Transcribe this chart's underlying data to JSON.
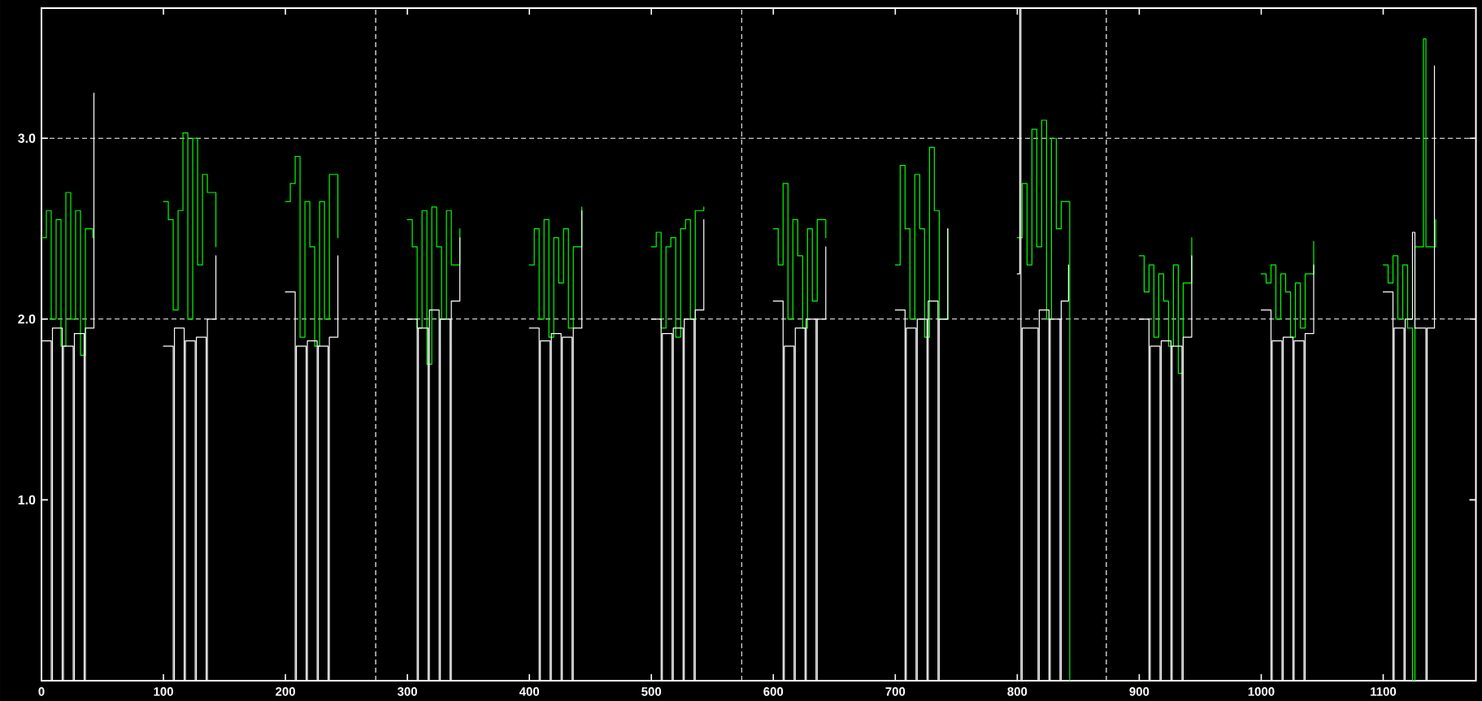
{
  "chart_data": {
    "type": "step",
    "xlim": [
      0,
      1176
    ],
    "ylim": [
      0,
      3.72
    ],
    "xticks": [
      0,
      100,
      200,
      300,
      400,
      500,
      600,
      700,
      800,
      900,
      1000,
      1100
    ],
    "yticks": [
      {
        "value": 1,
        "label": "1.0"
      },
      {
        "value": 2,
        "label": "2.0"
      },
      {
        "value": 3,
        "label": "3.0"
      }
    ],
    "ref_lines": [
      {
        "axis": "y",
        "value": 2,
        "color": "#ffffff",
        "line_style": "dashed"
      },
      {
        "axis": "y",
        "value": 3,
        "color": "#ffffff",
        "line_style": "dashed"
      },
      {
        "axis": "x",
        "value": 274,
        "color": "#ffffff",
        "line_style": "dashed"
      },
      {
        "axis": "x",
        "value": 574,
        "color": "#ffffff",
        "line_style": "dashed"
      },
      {
        "axis": "x",
        "value": 873,
        "color": "#ffffff",
        "line_style": "dashed"
      }
    ],
    "series": [
      {
        "color": "#00ff00",
        "x": [
          0,
          4,
          8,
          12,
          16,
          20,
          24,
          28,
          32,
          36,
          42,
          null,
          100,
          104,
          108,
          112,
          116,
          120,
          124,
          128,
          132,
          136,
          143,
          null,
          200,
          204,
          208,
          212,
          216,
          220,
          224,
          228,
          232,
          236,
          243,
          null,
          300,
          304,
          308,
          312,
          316,
          320,
          324,
          328,
          332,
          336,
          343,
          null,
          400,
          404,
          408,
          412,
          416,
          420,
          424,
          428,
          432,
          436,
          443,
          null,
          500,
          504,
          508,
          512,
          516,
          520,
          524,
          528,
          532,
          536,
          543,
          null,
          600,
          604,
          608,
          612,
          616,
          620,
          624,
          628,
          632,
          636,
          643,
          null,
          700,
          704,
          708,
          712,
          716,
          720,
          724,
          728,
          732,
          736,
          743,
          null,
          800,
          804,
          808,
          812,
          816,
          820,
          824,
          828,
          832,
          836,
          843,
          null,
          900,
          904,
          908,
          912,
          916,
          920,
          924,
          928,
          932,
          936,
          943,
          null,
          1000,
          1004,
          1008,
          1012,
          1016,
          1020,
          1024,
          1028,
          1032,
          1036,
          1043,
          null,
          1100,
          1104,
          1108,
          1112,
          1116,
          1120,
          1124,
          1126,
          1133,
          1135,
          1143
        ],
        "values": [
          2.45,
          2.6,
          2.0,
          2.55,
          1.85,
          2.7,
          2.0,
          2.6,
          1.8,
          2.5,
          2.45,
          null,
          2.65,
          2.55,
          2.05,
          2.6,
          3.03,
          2.0,
          3.0,
          2.3,
          2.8,
          2.7,
          2.4,
          null,
          2.65,
          2.75,
          2.9,
          1.9,
          2.65,
          2.4,
          1.85,
          2.65,
          2.0,
          2.8,
          2.45,
          null,
          2.55,
          2.4,
          1.95,
          2.6,
          1.75,
          2.62,
          2.4,
          2.0,
          2.6,
          2.3,
          2.5,
          null,
          2.3,
          2.5,
          2.0,
          2.55,
          1.9,
          2.45,
          2.2,
          2.5,
          1.95,
          2.4,
          2.62,
          null,
          2.4,
          2.48,
          1.95,
          2.4,
          2.45,
          1.9,
          2.5,
          2.55,
          2.0,
          2.6,
          2.62,
          null,
          2.5,
          2.3,
          2.75,
          2.0,
          2.55,
          2.35,
          1.95,
          2.5,
          2.1,
          2.55,
          2.45,
          null,
          2.3,
          2.85,
          2.5,
          2.0,
          2.8,
          2.5,
          1.9,
          2.95,
          2.6,
          2.0,
          2.5,
          null,
          2.45,
          2.75,
          2.3,
          3.05,
          2.4,
          3.1,
          2.0,
          3.0,
          2.5,
          2.65,
          0,
          null,
          2.35,
          2.15,
          2.3,
          1.9,
          2.25,
          2.1,
          1.85,
          2.3,
          1.7,
          2.2,
          2.45,
          null,
          2.25,
          2.2,
          2.3,
          2.0,
          2.25,
          2.15,
          1.9,
          2.2,
          1.95,
          2.25,
          2.43,
          null,
          2.3,
          2.2,
          2.35,
          2.0,
          2.3,
          1.95,
          0,
          2.4,
          3.55,
          2.4,
          2.55
        ]
      },
      {
        "color": "#ffffff",
        "x": [
          0,
          8,
          9,
          17,
          18,
          26,
          27,
          35,
          36,
          43,
          null,
          100,
          108,
          109,
          117,
          118,
          126,
          127,
          135,
          136,
          143,
          null,
          200,
          208,
          209,
          217,
          218,
          226,
          227,
          235,
          236,
          243,
          null,
          300,
          308,
          309,
          317,
          318,
          326,
          327,
          335,
          336,
          343,
          null,
          400,
          408,
          409,
          417,
          418,
          426,
          427,
          435,
          436,
          443,
          null,
          500,
          508,
          509,
          517,
          518,
          526,
          527,
          535,
          536,
          543,
          null,
          600,
          608,
          609,
          617,
          618,
          626,
          627,
          635,
          636,
          643,
          null,
          700,
          708,
          709,
          717,
          718,
          726,
          727,
          735,
          736,
          743,
          null,
          800,
          802,
          803,
          804,
          817,
          818,
          826,
          827,
          835,
          836,
          842,
          null,
          900,
          908,
          909,
          917,
          918,
          926,
          927,
          935,
          936,
          943,
          null,
          1000,
          1008,
          1009,
          1017,
          1018,
          1026,
          1027,
          1035,
          1036,
          1043,
          null,
          1100,
          1108,
          1109,
          1117,
          1118,
          1124,
          1126,
          1135,
          1136,
          1142
        ],
        "values": [
          1.88,
          0,
          1.95,
          0,
          1.85,
          0,
          1.92,
          0,
          1.95,
          3.25,
          null,
          1.85,
          0,
          1.95,
          0,
          1.88,
          0,
          1.9,
          0,
          2.0,
          2.35,
          null,
          2.15,
          0,
          1.85,
          0,
          1.88,
          0,
          1.85,
          0,
          1.9,
          2.35,
          null,
          2.0,
          0,
          1.95,
          0,
          2.05,
          0,
          2.0,
          0,
          2.1,
          2.45,
          null,
          1.95,
          0,
          1.88,
          0,
          1.92,
          0,
          1.9,
          0,
          1.95,
          2.6,
          null,
          2.0,
          0,
          1.92,
          0,
          1.95,
          0,
          2.0,
          0,
          2.05,
          2.55,
          null,
          2.1,
          0,
          1.85,
          0,
          1.95,
          0,
          2.0,
          0,
          2.0,
          2.4,
          null,
          2.05,
          0,
          1.95,
          0,
          2.0,
          0,
          2.1,
          0,
          2.0,
          2.5,
          null,
          2.25,
          3.72,
          0,
          1.95,
          0,
          2.05,
          0,
          2.0,
          0,
          2.1,
          2.3,
          null,
          2.0,
          0,
          1.85,
          0,
          1.88,
          0,
          1.85,
          0,
          1.9,
          2.35,
          null,
          2.05,
          0,
          1.88,
          0,
          1.9,
          0,
          1.88,
          0,
          1.92,
          2.3,
          null,
          2.15,
          0,
          1.95,
          0,
          2.0,
          2.48,
          1.95,
          0,
          1.95,
          3.4
        ]
      }
    ]
  }
}
